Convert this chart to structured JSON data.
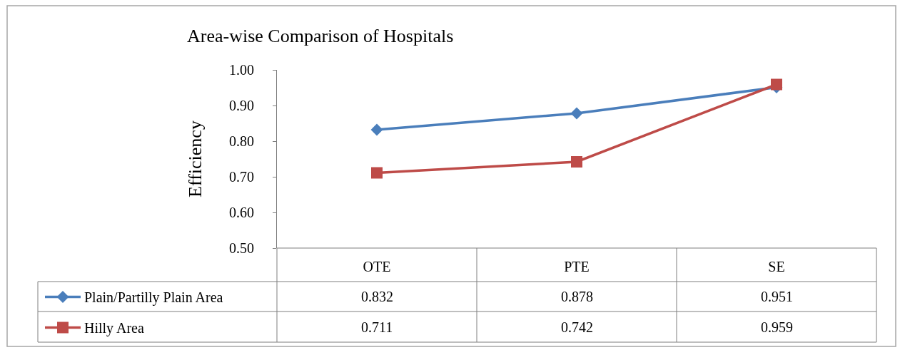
{
  "chart_data": {
    "type": "line",
    "title": "Area-wise Comparison of Hospitals",
    "ylabel": "Efficiency",
    "categories": [
      "OTE",
      "PTE",
      "SE"
    ],
    "series": [
      {
        "name": "Plain/Partilly Plain Area",
        "color": "#4a7ebb",
        "values": [
          0.832,
          0.878,
          0.951
        ],
        "marker": "diamond"
      },
      {
        "name": "Hilly Area",
        "color": "#be4b48",
        "values": [
          0.711,
          0.742,
          0.959
        ],
        "marker": "square"
      }
    ],
    "ylim": [
      0.5,
      1.0
    ],
    "yticks": [
      {
        "value": 0.5,
        "label": "0.50"
      },
      {
        "value": 0.6,
        "label": "0.60"
      },
      {
        "value": 0.7,
        "label": "0.70"
      },
      {
        "value": 0.8,
        "label": "0.80"
      },
      {
        "value": 0.9,
        "label": "0.90"
      },
      {
        "value": 1.0,
        "label": "1.00"
      }
    ],
    "data_labels": true,
    "legend": "bottom left",
    "line_style": "solid"
  }
}
